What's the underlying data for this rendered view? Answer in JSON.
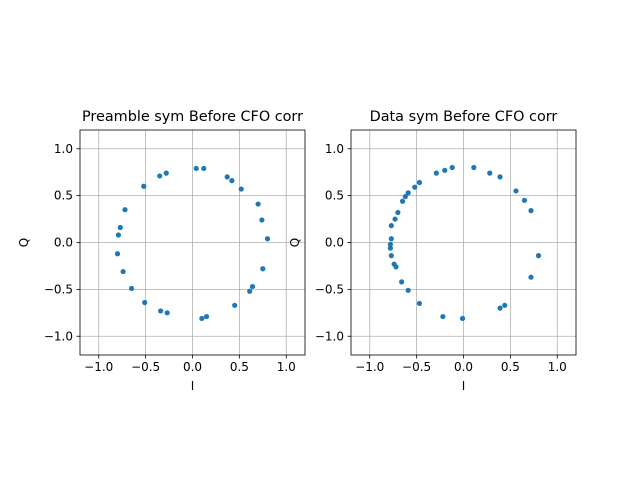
{
  "chart_data": [
    {
      "type": "scatter",
      "title": "Preamble sym Before CFO corr",
      "xlabel": "I",
      "ylabel": "Q",
      "xlim": [
        -1.2,
        1.2
      ],
      "ylim": [
        -1.2,
        1.2
      ],
      "xticks": [
        "−1.0",
        "−0.5",
        "0.0",
        "0.5",
        "1.0"
      ],
      "yticks": [
        "−1.0",
        "−0.5",
        "0.0",
        "0.5",
        "1.0"
      ],
      "grid": true,
      "color": "#1f77b4",
      "points": [
        [
          0.04,
          0.79
        ],
        [
          0.12,
          0.79
        ],
        [
          -0.28,
          0.74
        ],
        [
          -0.35,
          0.71
        ],
        [
          -0.52,
          0.6
        ],
        [
          0.37,
          0.7
        ],
        [
          0.42,
          0.66
        ],
        [
          0.52,
          0.57
        ],
        [
          0.7,
          0.41
        ],
        [
          0.74,
          0.24
        ],
        [
          0.8,
          0.04
        ],
        [
          -0.72,
          0.35
        ],
        [
          -0.77,
          0.16
        ],
        [
          -0.79,
          0.08
        ],
        [
          -0.8,
          -0.12
        ],
        [
          -0.74,
          -0.31
        ],
        [
          -0.65,
          -0.49
        ],
        [
          0.75,
          -0.28
        ],
        [
          0.64,
          -0.47
        ],
        [
          0.61,
          -0.52
        ],
        [
          0.45,
          -0.67
        ],
        [
          -0.51,
          -0.64
        ],
        [
          -0.34,
          -0.73
        ],
        [
          -0.27,
          -0.75
        ],
        [
          0.1,
          -0.81
        ],
        [
          0.15,
          -0.79
        ]
      ]
    },
    {
      "type": "scatter",
      "title": "Data sym Before CFO corr",
      "xlabel": "I",
      "ylabel": "Q",
      "xlim": [
        -1.2,
        1.2
      ],
      "ylim": [
        -1.2,
        1.2
      ],
      "xticks": [
        "−1.0",
        "−0.5",
        "0.0",
        "0.5",
        "1.0"
      ],
      "yticks": [
        "−1.0",
        "−0.5",
        "0.0",
        "0.5",
        "1.0"
      ],
      "grid": true,
      "color": "#1f77b4",
      "points": [
        [
          -0.2,
          0.77
        ],
        [
          -0.12,
          0.8
        ],
        [
          0.11,
          0.8
        ],
        [
          -0.29,
          0.74
        ],
        [
          0.28,
          0.74
        ],
        [
          0.39,
          0.7
        ],
        [
          -0.47,
          0.64
        ],
        [
          -0.52,
          0.59
        ],
        [
          -0.59,
          0.53
        ],
        [
          -0.62,
          0.49
        ],
        [
          -0.65,
          0.44
        ],
        [
          0.56,
          0.55
        ],
        [
          0.65,
          0.45
        ],
        [
          0.72,
          0.34
        ],
        [
          -0.7,
          0.32
        ],
        [
          -0.73,
          0.25
        ],
        [
          -0.77,
          0.18
        ],
        [
          -0.77,
          0.04
        ],
        [
          -0.78,
          -0.02
        ],
        [
          -0.78,
          -0.06
        ],
        [
          -0.77,
          -0.14
        ],
        [
          -0.74,
          -0.23
        ],
        [
          -0.72,
          -0.26
        ],
        [
          0.8,
          -0.14
        ],
        [
          0.72,
          -0.37
        ],
        [
          -0.66,
          -0.42
        ],
        [
          -0.59,
          -0.51
        ],
        [
          -0.47,
          -0.65
        ],
        [
          0.44,
          -0.67
        ],
        [
          0.39,
          -0.7
        ],
        [
          -0.22,
          -0.79
        ],
        [
          -0.01,
          -0.81
        ]
      ]
    }
  ]
}
